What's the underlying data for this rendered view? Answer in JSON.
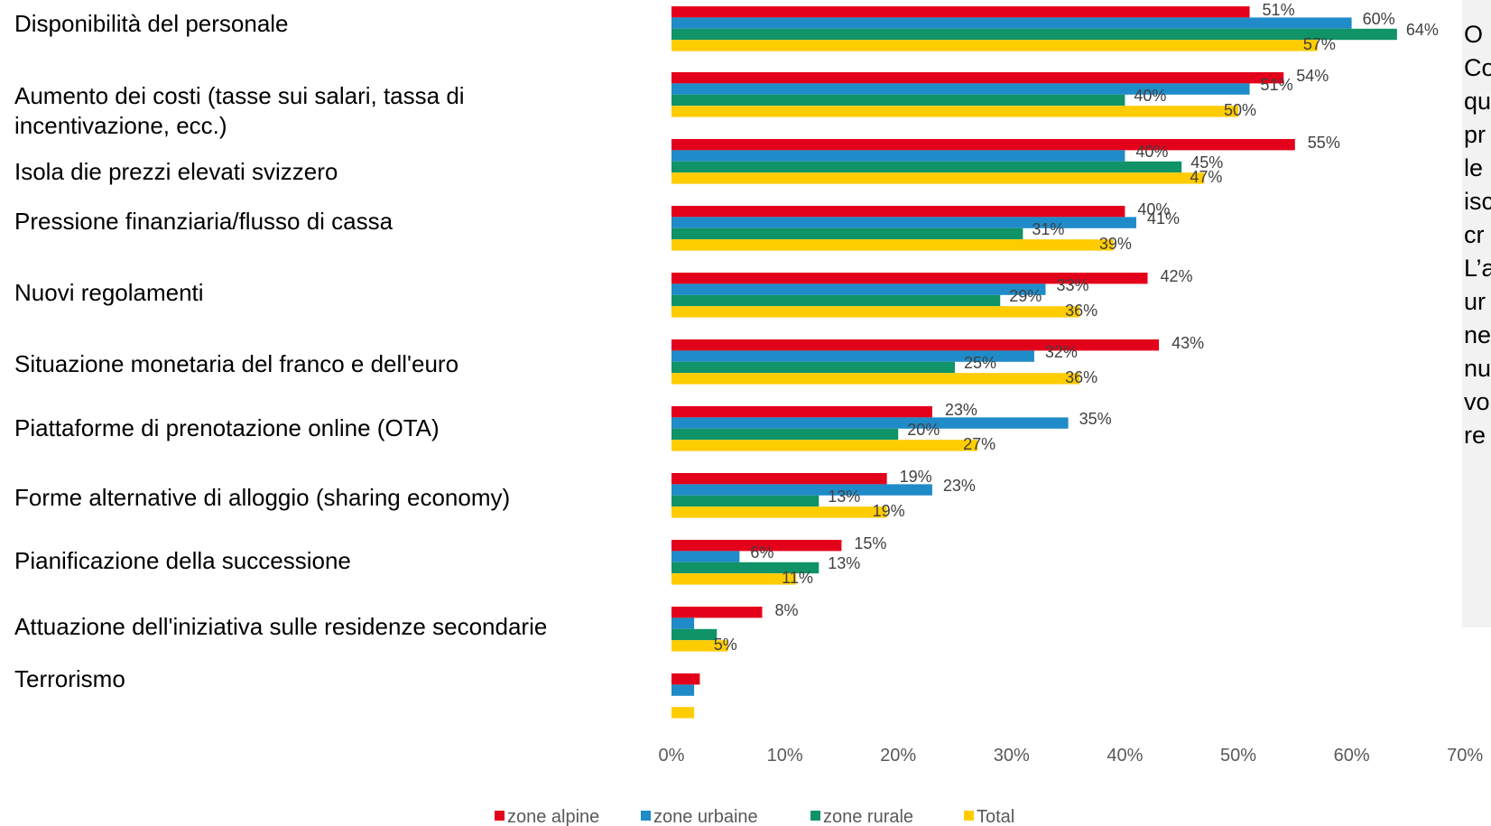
{
  "chart_data": {
    "type": "bar",
    "orientation": "horizontal",
    "categories": [
      "Disponibilità del personale",
      "Aumento dei costi (tasse sui salari, tassa di incentivazione, ecc.)",
      "Isola die prezzi elevati svizzero",
      "Pressione finanziaria/flusso di cassa",
      "Nuovi regolamenti",
      "Situazione monetaria del franco e dell'euro",
      "Piattaforme di prenotazione online (OTA)",
      "Forme alternative di alloggio (sharing economy)",
      "Pianificazione della successione",
      "Attuazione dell'iniziativa sulle residenze secondarie",
      "Terrorismo"
    ],
    "category_lines": [
      [
        "Disponibilità del personale"
      ],
      [
        "Aumento dei costi (tasse sui salari, tassa di",
        "incentivazione, ecc.)"
      ],
      [
        "Isola die prezzi elevati svizzero"
      ],
      [
        "Pressione finanziaria/flusso di cassa"
      ],
      [
        "Nuovi regolamenti"
      ],
      [
        "Situazione monetaria del franco e dell'euro"
      ],
      [
        "Piattaforme di prenotazione online (OTA)"
      ],
      [
        "Forme alternative di alloggio (sharing economy)"
      ],
      [
        "Pianificazione della successione"
      ],
      [
        "Attuazione dell'iniziativa sulle residenze secondarie"
      ],
      [
        "Terrorismo"
      ]
    ],
    "series": [
      {
        "name": "zone alpine",
        "color": "#e3001b",
        "values": [
          51,
          54,
          55,
          40,
          42,
          43,
          23,
          19,
          15,
          8,
          2.5
        ]
      },
      {
        "name": "zone urbaine",
        "color": "#1f8bc8",
        "values": [
          60,
          51,
          40,
          41,
          33,
          32,
          35,
          23,
          6,
          2,
          2
        ]
      },
      {
        "name": "zone rurale",
        "color": "#0f9367",
        "values": [
          64,
          40,
          45,
          31,
          29,
          25,
          20,
          13,
          13,
          4,
          0
        ]
      },
      {
        "name": "Total",
        "color": "#ffcc00",
        "values": [
          57,
          50,
          47,
          39,
          36,
          36,
          27,
          19,
          11,
          5,
          2
        ]
      }
    ],
    "data_labels": [
      [
        "51%",
        "60%",
        "64%",
        "57%"
      ],
      [
        "54%",
        "51%",
        "40%",
        "50%"
      ],
      [
        "55%",
        "40%",
        "45%",
        "47%"
      ],
      [
        "40%",
        "41%",
        "31%",
        "39%"
      ],
      [
        "42%",
        "33%",
        "29%",
        "36%"
      ],
      [
        "43%",
        "32%",
        "25%",
        "36%"
      ],
      [
        "23%",
        "35%",
        "20%",
        "27%"
      ],
      [
        "19%",
        "23%",
        "13%",
        "19%"
      ],
      [
        "15%",
        "6%",
        "13%",
        "11%"
      ],
      [
        "8%",
        "",
        "",
        "5%"
      ],
      [
        "",
        "",
        "",
        ""
      ]
    ],
    "xlim": [
      0,
      70
    ],
    "xticks": [
      "0%",
      "10%",
      "20%",
      "30%",
      "40%",
      "50%",
      "60%",
      "70%"
    ],
    "grid": false,
    "legend_position": "bottom"
  },
  "side_text": {
    "lines": [
      "O",
      "Co",
      "qu",
      "pr",
      "le",
      "isc",
      "cr",
      "L’a",
      "ur",
      "ne",
      "nu",
      "vo",
      "re"
    ]
  }
}
